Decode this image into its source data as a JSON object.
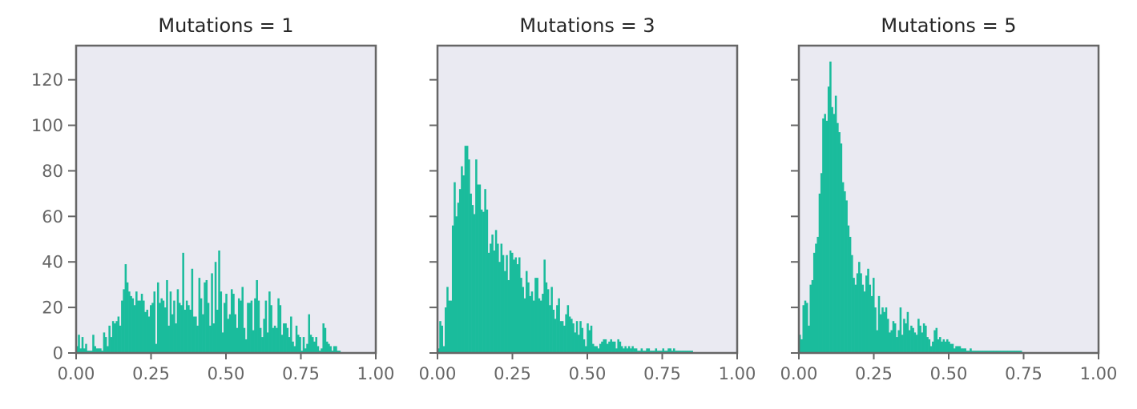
{
  "chart_data": [
    {
      "type": "bar",
      "title": "Mutations = 1",
      "xlim": [
        0,
        1
      ],
      "ylim": [
        0,
        135
      ],
      "x_ticks": [
        "0.00",
        "0.25",
        "0.50",
        "0.75",
        "1.00"
      ],
      "y_ticks": [
        "0",
        "20",
        "40",
        "60",
        "80",
        "100",
        "120"
      ],
      "show_y_tick_labels": true,
      "bar_color": "#1abc9c",
      "bin_width": 0.006,
      "bin_start": 0.0,
      "values": [
        3,
        8,
        2,
        7,
        2,
        4,
        1,
        1,
        1,
        8,
        3,
        2,
        2,
        2,
        1,
        9,
        7,
        3,
        12,
        7,
        14,
        13,
        14,
        16,
        12,
        23,
        28,
        39,
        31,
        27,
        25,
        24,
        21,
        27,
        23,
        23,
        26,
        23,
        18,
        19,
        16,
        21,
        22,
        27,
        4,
        31,
        22,
        24,
        23,
        20,
        32,
        12,
        27,
        17,
        23,
        13,
        28,
        22,
        21,
        44,
        19,
        23,
        21,
        19,
        37,
        16,
        16,
        12,
        33,
        24,
        17,
        31,
        32,
        22,
        12,
        35,
        13,
        40,
        19,
        45,
        27,
        9,
        22,
        26,
        15,
        17,
        28,
        26,
        17,
        11,
        24,
        23,
        29,
        11,
        6,
        22,
        22,
        23,
        10,
        24,
        32,
        23,
        11,
        7,
        15,
        23,
        9,
        27,
        21,
        11,
        12,
        11,
        24,
        21,
        8,
        13,
        13,
        11,
        7,
        16,
        5,
        3,
        12,
        8,
        7,
        1,
        7,
        2,
        4,
        17,
        8,
        7,
        5,
        7,
        3,
        1,
        2,
        13,
        11,
        5,
        4,
        3,
        1,
        3,
        3,
        1,
        1
      ]
    },
    {
      "type": "bar",
      "title": "Mutations = 3",
      "xlim": [
        0,
        1
      ],
      "ylim": [
        0,
        135
      ],
      "x_ticks": [
        "0.00",
        "0.25",
        "0.50",
        "0.75",
        "1.00"
      ],
      "y_ticks": [
        "0",
        "20",
        "40",
        "60",
        "80",
        "100",
        "120"
      ],
      "show_y_tick_labels": false,
      "bar_color": "#1abc9c",
      "bin_width": 0.006,
      "bin_start": 0.0,
      "values": [
        2,
        14,
        12,
        3,
        20,
        29,
        23,
        23,
        56,
        75,
        60,
        66,
        72,
        82,
        78,
        91,
        91,
        85,
        70,
        65,
        61,
        85,
        74,
        74,
        63,
        62,
        72,
        63,
        44,
        48,
        52,
        45,
        54,
        48,
        40,
        48,
        43,
        36,
        43,
        32,
        45,
        44,
        41,
        42,
        39,
        42,
        33,
        29,
        24,
        36,
        31,
        25,
        27,
        23,
        33,
        33,
        24,
        23,
        26,
        41,
        31,
        28,
        21,
        29,
        19,
        15,
        21,
        24,
        14,
        14,
        12,
        17,
        21,
        16,
        15,
        13,
        9,
        14,
        8,
        14,
        11,
        6,
        3,
        13,
        10,
        12,
        4,
        3,
        3,
        2,
        4,
        5,
        6,
        6,
        4,
        5,
        6,
        5,
        5,
        2,
        6,
        5,
        3,
        2,
        3,
        2,
        3,
        2,
        3,
        2,
        2,
        1,
        1,
        2,
        1,
        1,
        2,
        2,
        1,
        1,
        1,
        2,
        1,
        1,
        1,
        2,
        1,
        1,
        2,
        2,
        1,
        2,
        1,
        1,
        1,
        1,
        1,
        1,
        1,
        1,
        1,
        1
      ]
    },
    {
      "type": "bar",
      "title": "Mutations = 5",
      "xlim": [
        0,
        1
      ],
      "ylim": [
        0,
        135
      ],
      "x_ticks": [
        "0.00",
        "0.25",
        "0.50",
        "0.75",
        "1.00"
      ],
      "y_ticks": [
        "0",
        "20",
        "40",
        "60",
        "80",
        "100",
        "120"
      ],
      "show_y_tick_labels": false,
      "bar_color": "#1abc9c",
      "bin_width": 0.006,
      "bin_start": 0.0,
      "values": [
        8,
        6,
        21,
        23,
        22,
        12,
        30,
        32,
        44,
        48,
        51,
        70,
        79,
        103,
        105,
        102,
        117,
        128,
        108,
        105,
        113,
        101,
        97,
        92,
        75,
        71,
        67,
        56,
        51,
        43,
        33,
        30,
        35,
        40,
        35,
        30,
        27,
        34,
        37,
        30,
        25,
        33,
        20,
        10,
        25,
        17,
        20,
        18,
        20,
        15,
        9,
        10,
        14,
        13,
        7,
        10,
        20,
        8,
        15,
        13,
        18,
        10,
        12,
        11,
        9,
        8,
        15,
        12,
        9,
        13,
        12,
        7,
        6,
        3,
        5,
        10,
        11,
        6,
        7,
        5,
        6,
        5,
        6,
        5,
        4,
        4,
        2,
        3,
        3,
        3,
        2,
        2,
        2,
        1,
        1,
        2,
        1,
        1,
        1,
        1,
        1,
        1,
        1,
        1,
        1,
        1,
        1,
        1,
        1,
        1,
        1,
        1,
        1,
        1,
        1,
        1,
        1,
        1,
        1,
        1,
        1,
        1,
        1,
        1
      ]
    }
  ]
}
